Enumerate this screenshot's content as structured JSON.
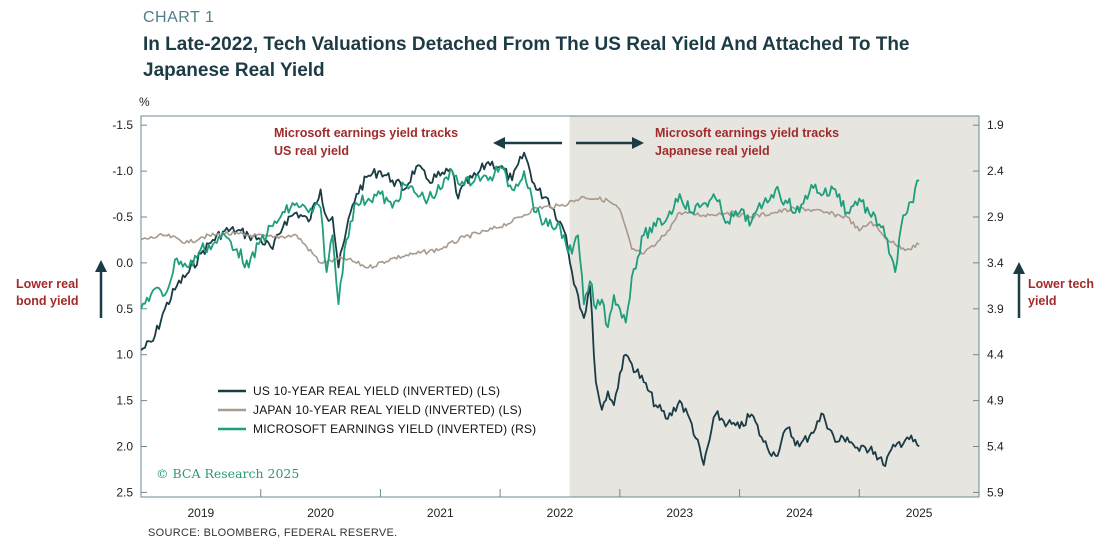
{
  "header": {
    "chart_number": "CHART 1",
    "title": "In Late-2022, Tech Valuations Detached From The US Real Yield And Attached To The Japanese Real Yield"
  },
  "side_notes": {
    "left": "Lower real bond yield",
    "right": "Lower tech yield"
  },
  "source": "SOURCE: BLOOMBERG, FEDERAL RESERVE.",
  "watermark": "© BCA Research 2025",
  "colors": {
    "us": "#1b3b45",
    "japan": "#a89a8c",
    "msft": "#1f9e7c",
    "shade": "#e6e5e0",
    "annotation": "#a12b2b"
  },
  "chart_data": {
    "type": "line",
    "title": "In Late-2022, Tech Valuations Detached From The US Real Yield And Attached To The Japanese Real Yield",
    "left_axis": {
      "label": "%",
      "range": [
        -1.6,
        2.55
      ],
      "inverted": true,
      "ticks": [
        -1.5,
        -1.0,
        -0.5,
        0.0,
        0.5,
        1.0,
        1.5,
        2.0,
        2.5
      ],
      "tick_labels": [
        "-1.5",
        "-1.0",
        "-0.5",
        "0.0",
        "0.5",
        "1.0",
        "1.5",
        "2.0",
        "2.5"
      ]
    },
    "right_axis": {
      "range": [
        1.8,
        5.95
      ],
      "inverted": true,
      "ticks": [
        1.9,
        2.4,
        2.9,
        3.4,
        3.9,
        4.4,
        4.9,
        5.4,
        5.9
      ],
      "tick_labels": [
        "1.9",
        "2.4",
        "2.9",
        "3.4",
        "3.9",
        "4.4",
        "4.9",
        "5.4",
        "5.9"
      ]
    },
    "x_axis": {
      "range": [
        2018.5,
        2025.5
      ],
      "year_boundaries": [
        2019,
        2020,
        2021,
        2022,
        2023,
        2024,
        2025
      ],
      "labels": [
        {
          "text": "2019",
          "x": 2019.0
        },
        {
          "text": "2020",
          "x": 2020.0
        },
        {
          "text": "2021",
          "x": 2021.0
        },
        {
          "text": "2022",
          "x": 2022.0
        },
        {
          "text": "2023",
          "x": 2023.0
        },
        {
          "text": "2024",
          "x": 2024.0
        },
        {
          "text": "2025",
          "x": 2025.0
        }
      ]
    },
    "shaded_region": [
      2022.08,
      2025.5
    ],
    "annotations": {
      "left": [
        "Microsoft earnings yield tracks",
        "US real yield"
      ],
      "right": [
        "Microsoft earnings yield tracks",
        "Japanese real yield"
      ]
    },
    "series": [
      {
        "name": "US 10-YEAR REAL YIELD (INVERTED) (LS)",
        "axis": "left",
        "x": [
          2018.5,
          2018.6,
          2018.7,
          2018.8,
          2018.9,
          2019.0,
          2019.1,
          2019.2,
          2019.3,
          2019.4,
          2019.5,
          2019.6,
          2019.7,
          2019.8,
          2019.9,
          2020.0,
          2020.05,
          2020.1,
          2020.15,
          2020.2,
          2020.25,
          2020.3,
          2020.4,
          2020.5,
          2020.6,
          2020.7,
          2020.8,
          2020.9,
          2021.0,
          2021.1,
          2021.15,
          2021.2,
          2021.3,
          2021.4,
          2021.5,
          2021.6,
          2021.7,
          2021.8,
          2021.9,
          2022.0,
          2022.05,
          2022.1,
          2022.15,
          2022.2,
          2022.25,
          2022.3,
          2022.35,
          2022.4,
          2022.45,
          2022.5,
          2022.55,
          2022.6,
          2022.7,
          2022.8,
          2022.9,
          2023.0,
          2023.1,
          2023.2,
          2023.3,
          2023.4,
          2023.5,
          2023.6,
          2023.7,
          2023.8,
          2023.9,
          2024.0,
          2024.1,
          2024.2,
          2024.3,
          2024.4,
          2024.5,
          2024.6,
          2024.7,
          2024.8,
          2024.9,
          2025.0
        ],
        "values": [
          0.95,
          0.85,
          0.5,
          0.25,
          0.1,
          -0.1,
          -0.25,
          -0.35,
          -0.35,
          -0.3,
          -0.25,
          -0.15,
          -0.45,
          -0.55,
          -0.45,
          -0.8,
          -0.5,
          -0.5,
          0.05,
          -0.25,
          -0.55,
          -0.75,
          -0.95,
          -1.0,
          -0.9,
          -0.8,
          -1.05,
          -0.9,
          -0.95,
          -1.0,
          -0.7,
          -0.85,
          -0.95,
          -1.1,
          -1.05,
          -0.9,
          -1.2,
          -0.8,
          -0.7,
          -0.45,
          -0.3,
          0.1,
          0.35,
          0.6,
          0.25,
          1.3,
          1.6,
          1.4,
          1.55,
          1.2,
          1.0,
          1.1,
          1.3,
          1.55,
          1.7,
          1.5,
          1.75,
          2.2,
          1.65,
          1.75,
          1.8,
          1.65,
          1.95,
          2.1,
          1.8,
          2.0,
          1.85,
          1.65,
          1.95,
          1.9,
          2.05,
          2.0,
          2.2,
          2.0,
          1.9,
          2.0
        ]
      },
      {
        "name": "JAPAN 10-YEAR REAL YIELD (INVERTED) (LS)",
        "axis": "left",
        "x": [
          2018.5,
          2018.7,
          2018.9,
          2019.0,
          2019.2,
          2019.4,
          2019.6,
          2019.8,
          2020.0,
          2020.2,
          2020.4,
          2020.6,
          2020.8,
          2021.0,
          2021.2,
          2021.4,
          2021.6,
          2021.8,
          2022.0,
          2022.2,
          2022.3,
          2022.4,
          2022.5,
          2022.6,
          2022.7,
          2022.8,
          2022.9,
          2023.0,
          2023.2,
          2023.4,
          2023.6,
          2023.8,
          2024.0,
          2024.2,
          2024.4,
          2024.5,
          2024.6,
          2024.7,
          2024.8,
          2024.9,
          2025.0
        ],
        "values": [
          -0.25,
          -0.3,
          -0.22,
          -0.28,
          -0.32,
          -0.3,
          -0.28,
          -0.3,
          0.0,
          -0.05,
          0.05,
          -0.05,
          -0.1,
          -0.15,
          -0.28,
          -0.35,
          -0.45,
          -0.6,
          -0.62,
          -0.72,
          -0.7,
          -0.68,
          -0.58,
          -0.15,
          -0.1,
          -0.2,
          -0.35,
          -0.55,
          -0.52,
          -0.55,
          -0.5,
          -0.55,
          -0.6,
          -0.55,
          -0.5,
          -0.35,
          -0.45,
          -0.3,
          -0.2,
          -0.15,
          -0.2
        ]
      },
      {
        "name": "MICROSOFT EARNINGS YIELD (INVERTED) (RS)",
        "axis": "right",
        "x": [
          2018.5,
          2018.6,
          2018.7,
          2018.8,
          2018.9,
          2019.0,
          2019.1,
          2019.2,
          2019.3,
          2019.4,
          2019.5,
          2019.6,
          2019.7,
          2019.8,
          2019.9,
          2020.0,
          2020.05,
          2020.1,
          2020.15,
          2020.2,
          2020.25,
          2020.3,
          2020.4,
          2020.5,
          2020.6,
          2020.7,
          2020.8,
          2020.9,
          2021.0,
          2021.1,
          2021.2,
          2021.3,
          2021.4,
          2021.5,
          2021.6,
          2021.7,
          2021.8,
          2021.9,
          2022.0,
          2022.05,
          2022.1,
          2022.15,
          2022.2,
          2022.25,
          2022.3,
          2022.35,
          2022.4,
          2022.45,
          2022.5,
          2022.55,
          2022.6,
          2022.7,
          2022.8,
          2022.9,
          2023.0,
          2023.1,
          2023.2,
          2023.3,
          2023.4,
          2023.5,
          2023.6,
          2023.7,
          2023.8,
          2023.9,
          2024.0,
          2024.1,
          2024.2,
          2024.3,
          2024.4,
          2024.5,
          2024.6,
          2024.7,
          2024.75,
          2024.8,
          2024.85,
          2024.9,
          2025.0
        ],
        "values": [
          3.9,
          3.7,
          3.75,
          3.35,
          3.45,
          3.25,
          3.2,
          3.1,
          3.25,
          3.45,
          3.15,
          3.0,
          2.85,
          2.75,
          2.85,
          2.8,
          3.5,
          3.1,
          3.85,
          3.25,
          2.95,
          2.75,
          2.7,
          2.65,
          2.8,
          2.55,
          2.65,
          2.7,
          2.6,
          2.4,
          2.55,
          2.45,
          2.5,
          2.35,
          2.6,
          2.4,
          2.85,
          3.0,
          3.0,
          3.2,
          3.3,
          3.1,
          3.85,
          3.6,
          3.9,
          3.8,
          4.1,
          3.75,
          3.9,
          4.05,
          3.55,
          3.1,
          3.0,
          2.9,
          2.65,
          2.85,
          2.75,
          2.7,
          2.95,
          2.85,
          2.95,
          2.75,
          2.6,
          2.75,
          2.85,
          2.55,
          2.65,
          2.6,
          2.85,
          2.7,
          2.9,
          3.0,
          3.3,
          3.5,
          3.0,
          2.85,
          2.5
        ]
      }
    ],
    "legend": {
      "placement": "bottom-left",
      "entries": [
        "US 10-YEAR REAL YIELD (INVERTED) (LS)",
        "JAPAN 10-YEAR REAL YIELD (INVERTED) (LS)",
        "MICROSOFT EARNINGS YIELD (INVERTED) (RS)"
      ]
    }
  }
}
